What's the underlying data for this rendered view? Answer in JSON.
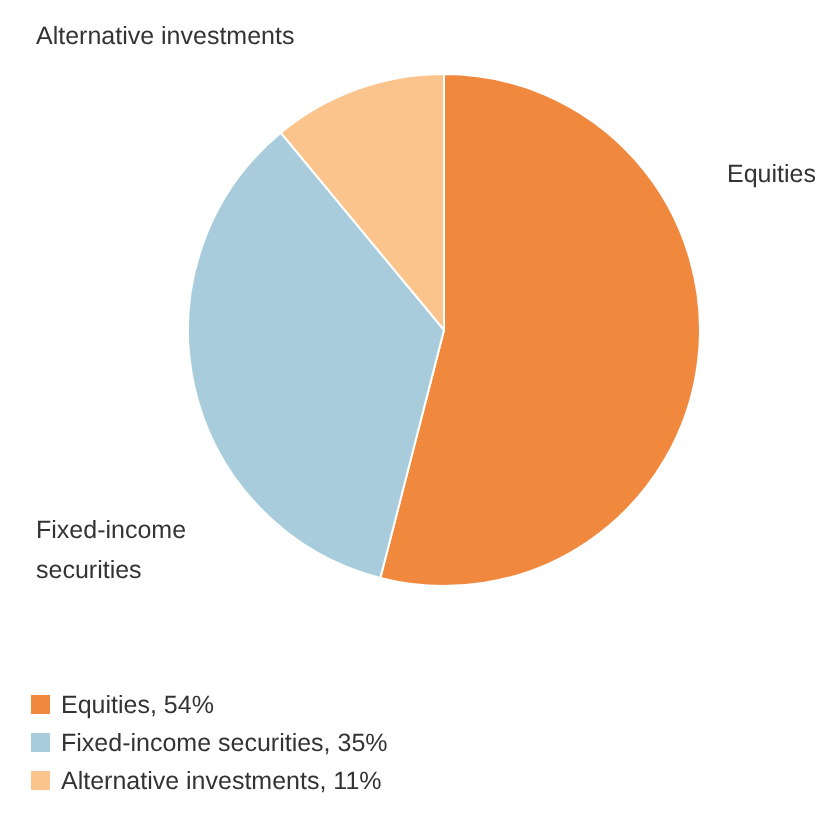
{
  "chart_data": {
    "type": "pie",
    "categories": [
      "Equities, 54%",
      "Fixed-income securities, 35%",
      "Alternative investments, 11%"
    ],
    "values": [
      54,
      35,
      11
    ],
    "colors": [
      "#f0883e",
      "#a8ccdc",
      "#fbc48c"
    ],
    "annotations": [
      "Equities",
      "Fixed-income securities",
      "Alternative investments"
    ],
    "legend": "bottom left"
  }
}
